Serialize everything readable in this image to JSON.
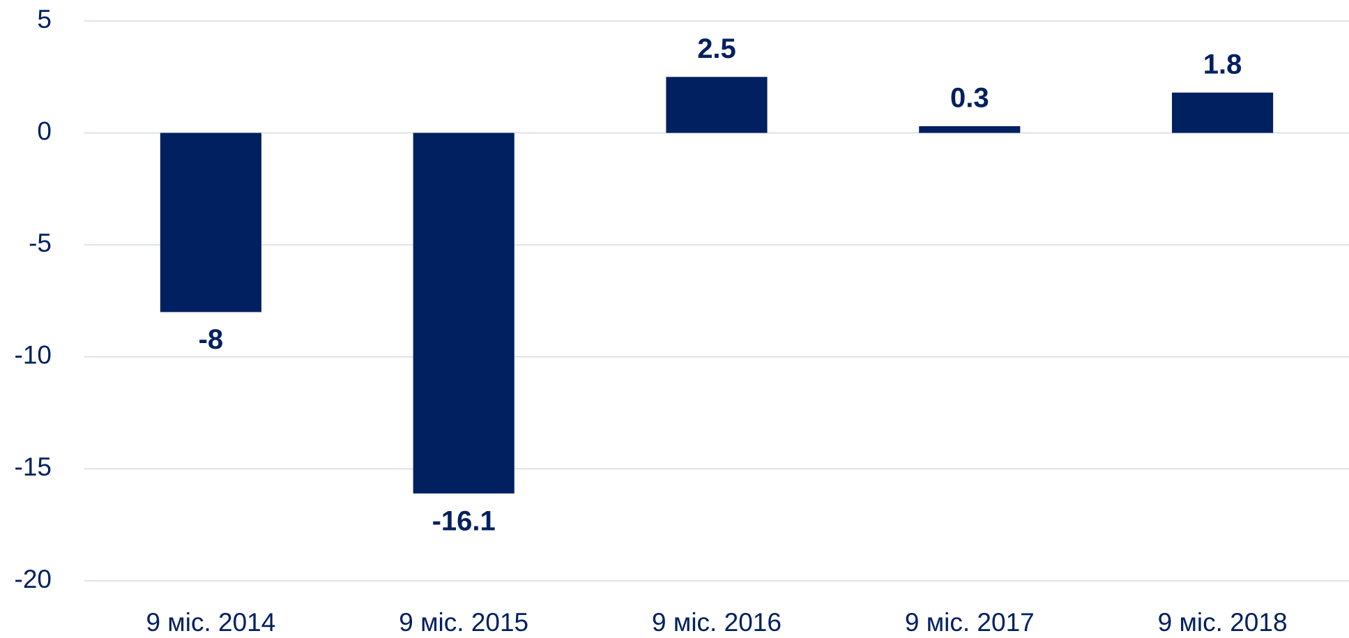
{
  "chart_data": {
    "type": "bar",
    "categories": [
      "9 міс. 2014",
      "9 міс. 2015",
      "9 міс. 2016",
      "9 міс. 2017",
      "9 міс. 2018"
    ],
    "values": [
      -8,
      -16.1,
      2.5,
      0.3,
      1.8
    ],
    "color": "#002060",
    "ylim": [
      -20,
      5
    ],
    "yticks": [
      5,
      0,
      -5,
      -10,
      -15,
      -20
    ],
    "grid": true
  }
}
